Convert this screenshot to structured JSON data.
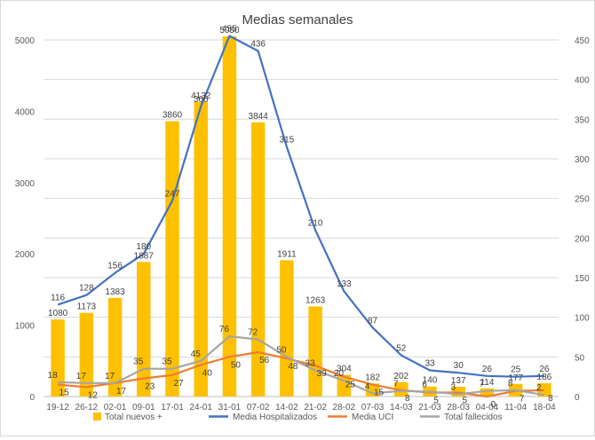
{
  "chart_data": {
    "type": "bar+line",
    "title": "Medias semanales",
    "categories": [
      "19-12",
      "26-12",
      "02-01",
      "09-01",
      "17-01",
      "24-01",
      "31-01",
      "07-02",
      "14-02",
      "21-02",
      "28-02",
      "07-03",
      "14-03",
      "21-03",
      "28-03",
      "04-04",
      "11-04",
      "18-04"
    ],
    "y_left": {
      "ylim": [
        0,
        5000
      ],
      "ticks": [
        "0",
        "1000",
        "2000",
        "3000",
        "4000",
        "5000"
      ]
    },
    "y_right": {
      "ylim": [
        0,
        450
      ],
      "ticks": [
        "0",
        "50",
        "100",
        "150",
        "200",
        "250",
        "300",
        "350",
        "400",
        "450"
      ]
    },
    "series": [
      {
        "name": "Total nuevos +",
        "kind": "bar",
        "axis": "left",
        "color": "#FFC000",
        "values": [
          1080,
          1173,
          1383,
          1887,
          3860,
          4132,
          5050,
          3844,
          1911,
          1263,
          304,
          182,
          202,
          140,
          137,
          114,
          177,
          186
        ],
        "labels": [
          "1080",
          "1173",
          "1383",
          "1887",
          "3860",
          "4132",
          "5050",
          "3844",
          "1911",
          "1263",
          "304",
          "182",
          "202",
          "140",
          "137",
          "114",
          "177",
          "186"
        ]
      },
      {
        "name": "Media Hospitalizados",
        "kind": "line",
        "axis": "right",
        "color": "#4472C4",
        "values": [
          116,
          128,
          156,
          180,
          247,
          366,
          455,
          436,
          315,
          210,
          133,
          87,
          52,
          33,
          30,
          26,
          25,
          26
        ],
        "labels": [
          "116",
          "128",
          "156",
          "180",
          "247",
          "366",
          "455",
          "436",
          "315",
          "210",
          "133",
          "87",
          "52",
          "33",
          "30",
          "26",
          "25",
          "26"
        ]
      },
      {
        "name": "Media UCI",
        "kind": "line",
        "axis": "right",
        "color": "#ED7D31",
        "values": [
          15,
          12,
          17,
          23,
          27,
          40,
          50,
          56,
          48,
          39,
          25,
          15,
          8,
          5,
          5,
          0,
          7,
          8
        ],
        "labels": [
          "15",
          "12",
          "17",
          "23",
          "27",
          "40",
          "50",
          "56",
          "48",
          "39",
          "25",
          "15",
          "8",
          "5",
          "5",
          "0",
          "7",
          "8"
        ]
      },
      {
        "name": "Total fallecidos",
        "kind": "line",
        "axis": "right",
        "color": "#A5A5A5",
        "values": [
          18,
          17,
          17,
          35,
          35,
          45,
          76,
          72,
          50,
          33,
          20,
          4,
          7,
          6,
          3,
          7,
          8,
          2
        ],
        "labels": [
          "18",
          "17",
          "17",
          "35",
          "35",
          "45",
          "76",
          "72",
          "50",
          "33",
          "20",
          "4",
          "7",
          "6",
          "3",
          "7",
          "8",
          "2"
        ]
      }
    ],
    "legend": {
      "placement": "bottom"
    }
  }
}
